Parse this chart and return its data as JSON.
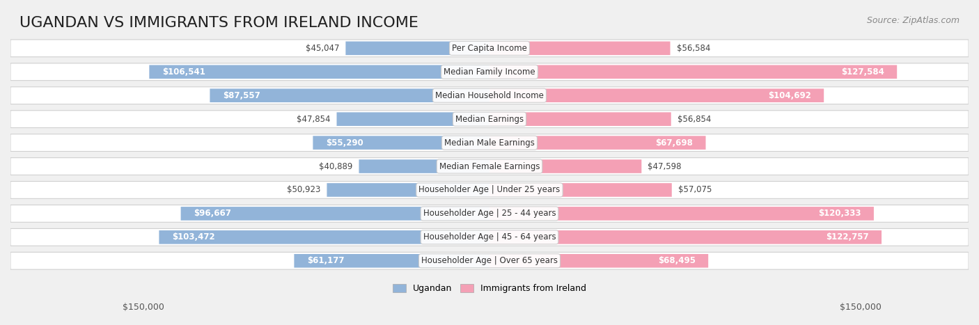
{
  "title": "UGANDAN VS IMMIGRANTS FROM IRELAND INCOME",
  "source": "Source: ZipAtlas.com",
  "categories": [
    "Per Capita Income",
    "Median Family Income",
    "Median Household Income",
    "Median Earnings",
    "Median Male Earnings",
    "Median Female Earnings",
    "Householder Age | Under 25 years",
    "Householder Age | 25 - 44 years",
    "Householder Age | 45 - 64 years",
    "Householder Age | Over 65 years"
  ],
  "ugandan_values": [
    45047,
    106541,
    87557,
    47854,
    55290,
    40889,
    50923,
    96667,
    103472,
    61177
  ],
  "ireland_values": [
    56584,
    127584,
    104692,
    56854,
    67698,
    47598,
    57075,
    120333,
    122757,
    68495
  ],
  "ugandan_labels": [
    "$45,047",
    "$106,541",
    "$87,557",
    "$47,854",
    "$55,290",
    "$40,889",
    "$50,923",
    "$96,667",
    "$103,472",
    "$61,177"
  ],
  "ireland_labels": [
    "$56,584",
    "$127,584",
    "$104,692",
    "$56,854",
    "$67,698",
    "$47,598",
    "$57,075",
    "$120,333",
    "$122,757",
    "$68,495"
  ],
  "ugandan_color": "#92b4d9",
  "ireland_color": "#f4a0b5",
  "ugandan_color_dark": "#6a9fd4",
  "ireland_color_dark": "#f07fa0",
  "max_value": 150000,
  "background_color": "#f0f0f0",
  "row_bg_color": "#f8f8f8",
  "row_border_color": "#d0d0d0",
  "title_fontsize": 16,
  "label_fontsize": 9,
  "axis_label": "$150,000",
  "legend_ugandan": "Ugandan",
  "legend_ireland": "Immigrants from Ireland"
}
